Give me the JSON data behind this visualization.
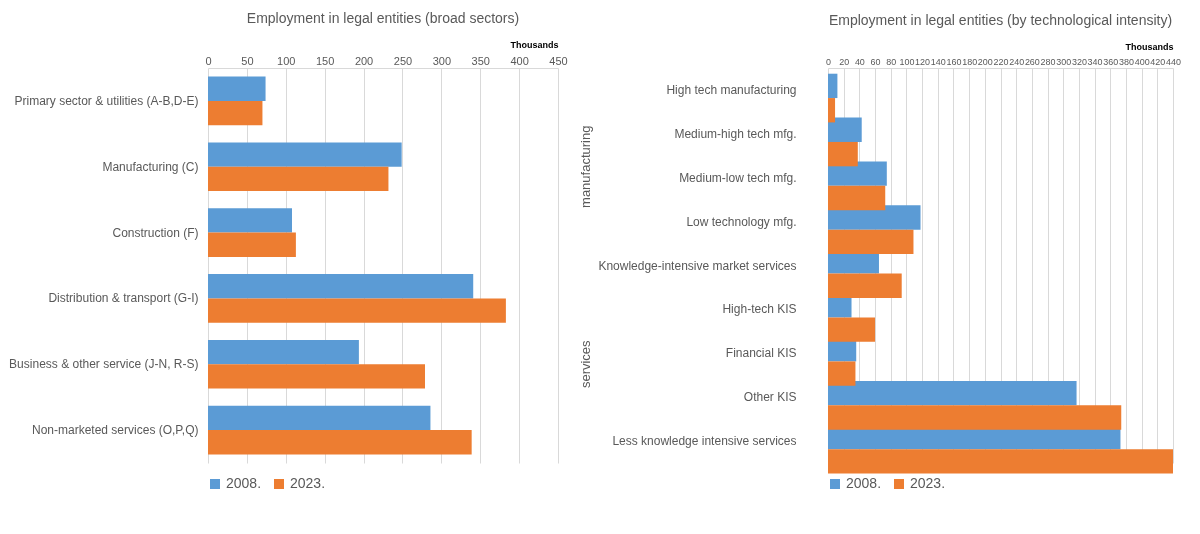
{
  "chart_data": [
    {
      "type": "bar",
      "orientation": "horizontal",
      "title": "Employment in legal entities (broad sectors)",
      "xlabel": "Thousands",
      "categories": [
        "Primary sector & utilities (A-B,D-E)",
        "Manufacturing (C)",
        "Construction (F)",
        "Distribution & transport (G-I)",
        "Business & other service (J-N, R-S)",
        "Non-marketed services (O,P,Q)"
      ],
      "series": [
        {
          "name": "2008.",
          "color": "#5b9bd5",
          "values": [
            74,
            249,
            108,
            341,
            194,
            286
          ]
        },
        {
          "name": "2023.",
          "color": "#ed7d31",
          "values": [
            70,
            232,
            113,
            383,
            279,
            339
          ]
        }
      ],
      "xlim": [
        0,
        450
      ],
      "xticks": [
        0,
        50,
        100,
        150,
        200,
        250,
        300,
        350,
        400,
        450
      ],
      "grid": "x",
      "legend": "bottom"
    },
    {
      "type": "bar",
      "orientation": "horizontal",
      "title": "Employment in legal entities (by technological intensity)",
      "xlabel": "Thousands",
      "categories": [
        "High tech manufacturing",
        "Medium-high tech mfg.",
        "Medium-low tech mfg.",
        "Low technology mfg.",
        "Knowledge-intensive market services",
        "High-tech KIS",
        "Financial KIS",
        "Other KIS",
        "Less knowledge intensive services"
      ],
      "series": [
        {
          "name": "2008.",
          "color": "#5b9bd5",
          "values": [
            12,
            43,
            75,
            118,
            65,
            30,
            36,
            317,
            373
          ]
        },
        {
          "name": "2023.",
          "color": "#ed7d31",
          "values": [
            9,
            38,
            73,
            109,
            94,
            60,
            35,
            374,
            440
          ]
        }
      ],
      "xlim": [
        0,
        440
      ],
      "xticks": [
        0,
        20,
        40,
        60,
        80,
        100,
        120,
        140,
        160,
        180,
        200,
        220,
        240,
        260,
        280,
        300,
        320,
        340,
        360,
        380,
        400,
        420,
        440
      ],
      "grid": "x",
      "legend": "bottom",
      "annotations": [
        "manufacturing",
        "services"
      ]
    }
  ]
}
